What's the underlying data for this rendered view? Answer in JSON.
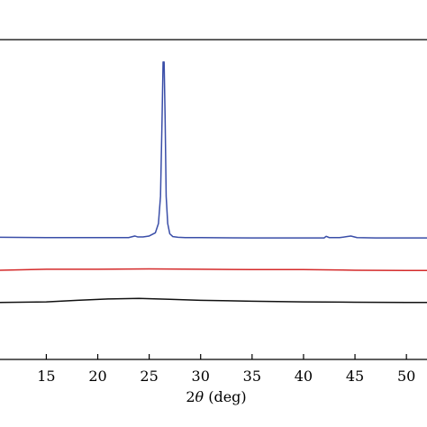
{
  "chart_data": {
    "type": "line",
    "xlabel_parts": {
      "prefix": "2",
      "symbol": "θ",
      "suffix": " (deg)"
    },
    "xlim": [
      10.5,
      52.0
    ],
    "xticks": [
      15,
      20,
      25,
      30,
      35,
      40,
      45,
      50
    ],
    "xtick_labels": [
      "15",
      "20",
      "25",
      "30",
      "35",
      "40",
      "45",
      "50"
    ],
    "ylim": [
      0,
      100
    ],
    "grid": false,
    "legend": "none",
    "series": [
      {
        "color": "#3a4ea8",
        "x": [
          10.5,
          15,
          20,
          23.0,
          23.6,
          23.9,
          24.4,
          25.0,
          25.6,
          25.9,
          26.1,
          26.25,
          26.35,
          26.45,
          26.55,
          26.65,
          26.8,
          27.0,
          27.3,
          27.8,
          28.5,
          30,
          35,
          40,
          42.0,
          42.2,
          42.5,
          43.5,
          44.2,
          44.6,
          45.2,
          47,
          50,
          52.0
        ],
        "y": [
          38.2,
          38.1,
          38.1,
          38.1,
          38.6,
          38.3,
          38.3,
          38.6,
          39.6,
          42.5,
          51,
          75,
          93,
          93,
          75,
          51,
          42.5,
          39.3,
          38.4,
          38.2,
          38.1,
          38.1,
          38.0,
          38.0,
          38.0,
          38.5,
          38.1,
          38.1,
          38.4,
          38.6,
          38.1,
          38.0,
          38.0,
          38.0
        ]
      },
      {
        "color": "#d42a2a",
        "x": [
          10.5,
          15,
          20,
          25,
          30,
          35,
          40,
          45,
          50,
          52.0
        ],
        "y": [
          27.9,
          28.2,
          28.2,
          28.3,
          28.2,
          28.1,
          28.1,
          27.9,
          27.8,
          27.8
        ]
      },
      {
        "color": "#111111",
        "x": [
          10.5,
          15,
          18,
          21,
          24,
          27,
          30,
          35,
          40,
          45,
          50,
          52.0
        ],
        "y": [
          17.8,
          18.0,
          18.5,
          18.9,
          19.1,
          18.8,
          18.5,
          18.2,
          18.0,
          17.9,
          17.8,
          17.8
        ]
      }
    ]
  }
}
